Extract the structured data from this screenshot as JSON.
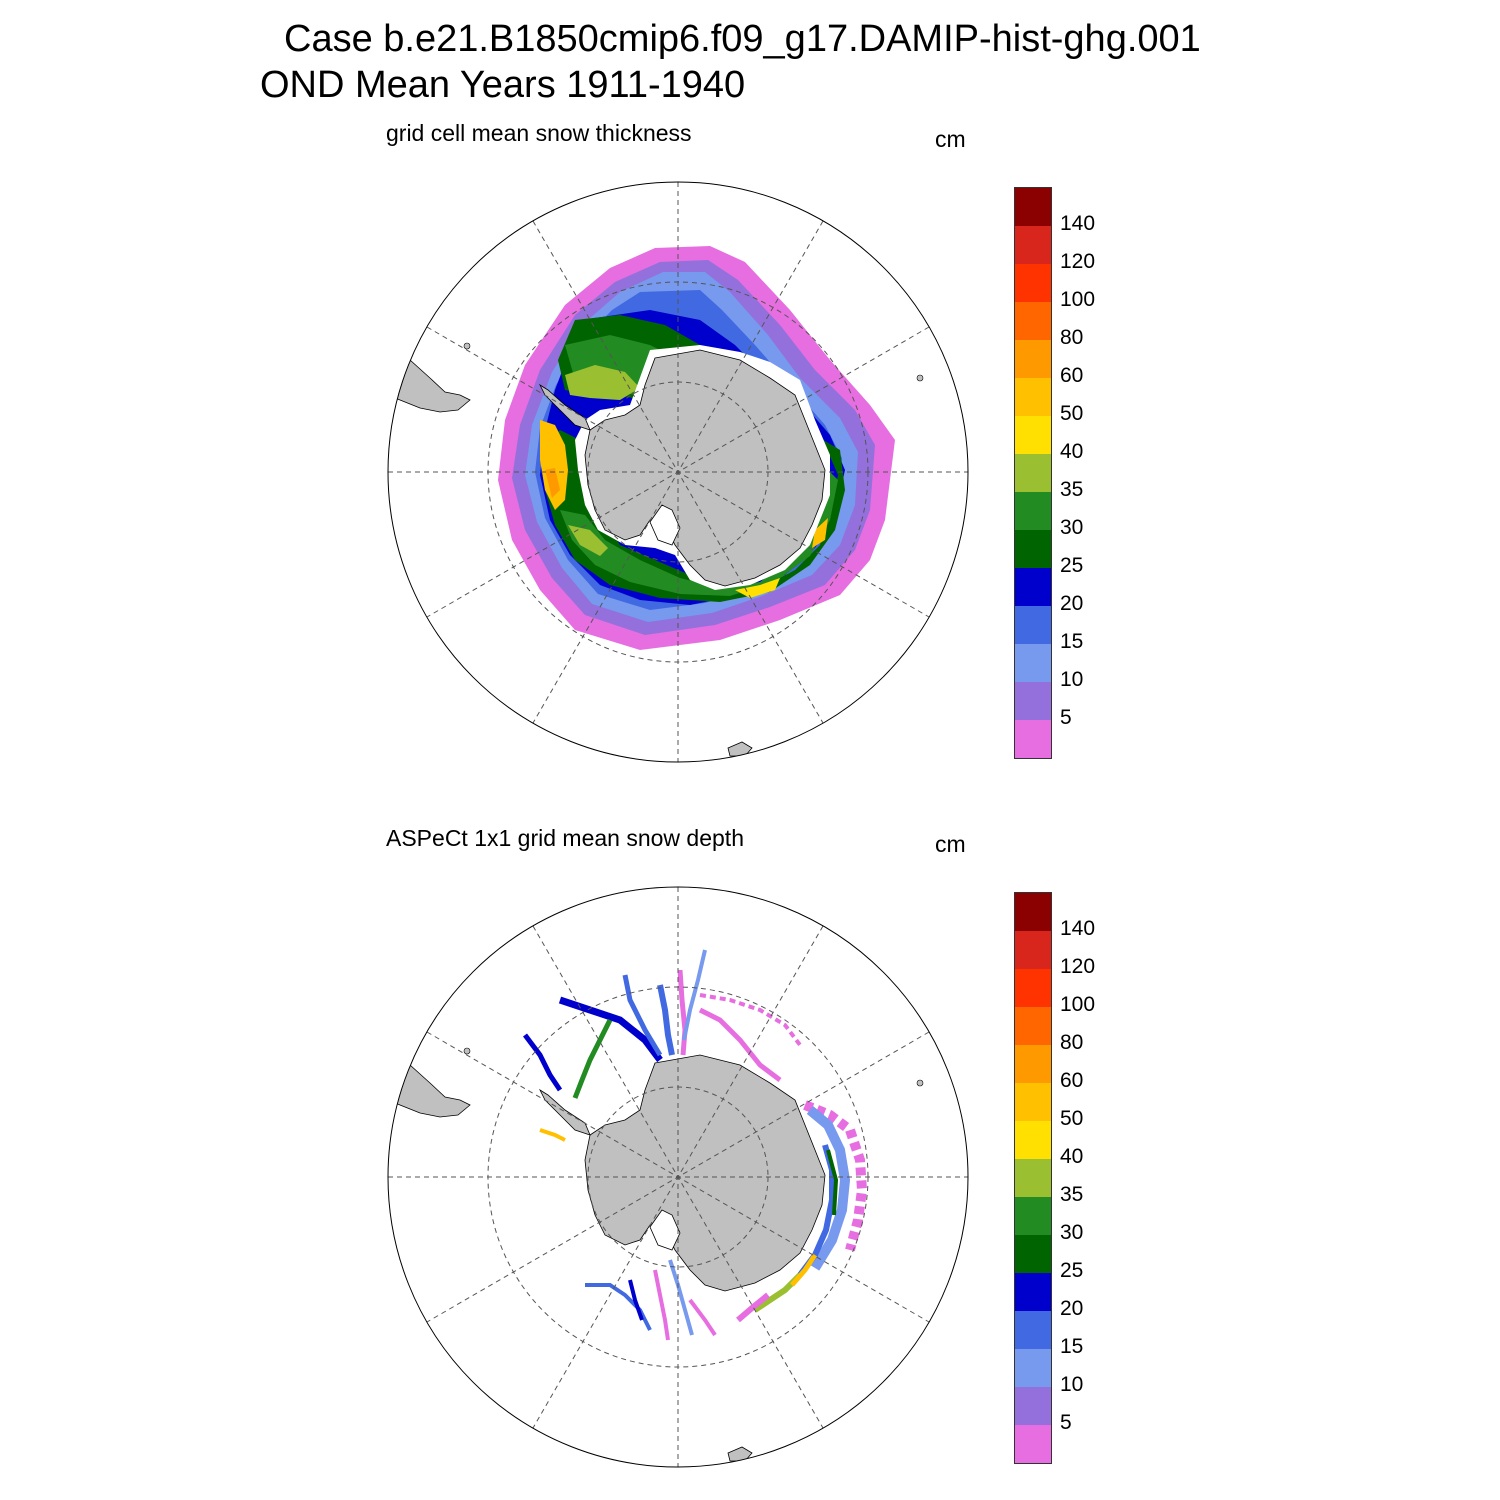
{
  "title": {
    "line1": "Case b.e21.B1850cmip6.f09_g17.DAMIP-hist-ghg.001",
    "line2": "OND Mean   Years 1911-1940"
  },
  "panels": [
    {
      "subtitle": "grid cell mean snow thickness",
      "units": "cm"
    },
    {
      "subtitle": "ASPeCt 1x1 grid mean snow depth",
      "units": "cm"
    }
  ],
  "colorbar": {
    "labels": [
      "140",
      "120",
      "100",
      "80",
      "60",
      "50",
      "40",
      "35",
      "30",
      "25",
      "20",
      "15",
      "10",
      "5"
    ],
    "colors_top_to_bottom": [
      "#8b0000",
      "#d9261c",
      "#ff3300",
      "#ff6600",
      "#ff9900",
      "#ffc000",
      "#ffe000",
      "#9ac032",
      "#228b22",
      "#006400",
      "#0000cd",
      "#4169e1",
      "#7799ee",
      "#9370db",
      "#e66ee0"
    ]
  },
  "map": {
    "projection": "south polar stereographic",
    "land_color": "#c0c0c0",
    "graticule": "dashed"
  }
}
